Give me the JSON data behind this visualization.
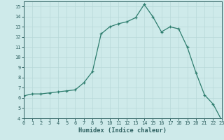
{
  "x": [
    0,
    1,
    2,
    3,
    4,
    5,
    6,
    7,
    8,
    9,
    10,
    11,
    12,
    13,
    14,
    15,
    16,
    17,
    18,
    19,
    20,
    21,
    22,
    23
  ],
  "y": [
    6.2,
    6.4,
    6.4,
    6.5,
    6.6,
    6.7,
    6.8,
    7.5,
    8.6,
    12.3,
    13.0,
    13.3,
    13.5,
    13.9,
    15.2,
    14.0,
    12.5,
    13.0,
    12.8,
    11.0,
    8.5,
    6.3,
    5.4,
    3.8
  ],
  "xlim": [
    0,
    23
  ],
  "ylim": [
    4,
    15.5
  ],
  "yticks": [
    4,
    5,
    6,
    7,
    8,
    9,
    10,
    11,
    12,
    13,
    14,
    15
  ],
  "xticks": [
    0,
    1,
    2,
    3,
    4,
    5,
    6,
    7,
    8,
    9,
    10,
    11,
    12,
    13,
    14,
    15,
    16,
    17,
    18,
    19,
    20,
    21,
    22,
    23
  ],
  "xlabel": "Humidex (Indice chaleur)",
  "line_color": "#2e7d6e",
  "marker": "+",
  "bg_color": "#ceeaea",
  "grid_color": "#b8d8d8",
  "tick_color": "#2e6060",
  "label_color": "#2e6060",
  "spine_color": "#2e6060",
  "tick_fontsize": 5.0,
  "xlabel_fontsize": 6.2
}
